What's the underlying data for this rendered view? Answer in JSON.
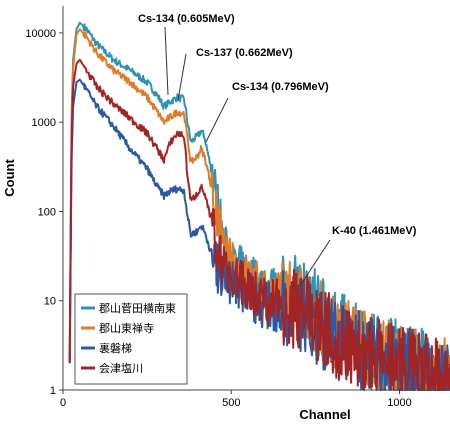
{
  "chart_data": {
    "type": "line",
    "xlabel": "Channel",
    "ylabel": "Count",
    "xlim": [
      0,
      1150
    ],
    "ylim": [
      1,
      20000
    ],
    "yscale": "log",
    "x_ticks": [
      0,
      500,
      1000
    ],
    "y_ticks": [
      1,
      10,
      100,
      1000,
      10000
    ],
    "x_tick_labels": [
      "0",
      "500",
      "1000"
    ],
    "y_tick_labels": [
      "1",
      "10",
      "100",
      "1000",
      "10000"
    ],
    "grid": false,
    "legend_position": "bottom-left",
    "annotations": [
      {
        "text": "Cs-134 (0.605MeV)",
        "x": 330,
        "y": 1500
      },
      {
        "text": "Cs-137 (0.662MeV)",
        "x": 350,
        "y": 1600
      },
      {
        "text": "Cs-134 (0.796MeV)",
        "x": 420,
        "y": 450
      },
      {
        "text": "K-40 (1.461MeV)",
        "x": 705,
        "y": 14
      }
    ],
    "series": [
      {
        "name": "郡山菅田横南東",
        "color": "#2f93b6",
        "points": [
          [
            20,
            2
          ],
          [
            25,
            900
          ],
          [
            30,
            5000
          ],
          [
            40,
            11000
          ],
          [
            50,
            13000
          ],
          [
            70,
            11000
          ],
          [
            100,
            7500
          ],
          [
            150,
            5000
          ],
          [
            200,
            3800
          ],
          [
            250,
            2800
          ],
          [
            280,
            2000
          ],
          [
            300,
            1500
          ],
          [
            320,
            1700
          ],
          [
            340,
            1900
          ],
          [
            360,
            1800
          ],
          [
            370,
            1000
          ],
          [
            380,
            600
          ],
          [
            400,
            700
          ],
          [
            410,
            800
          ],
          [
            420,
            700
          ],
          [
            440,
            300
          ],
          [
            460,
            120
          ],
          [
            480,
            40
          ],
          [
            500,
            25
          ],
          [
            550,
            20
          ],
          [
            600,
            14
          ],
          [
            650,
            12
          ],
          [
            700,
            12
          ],
          [
            750,
            8
          ],
          [
            800,
            5
          ],
          [
            900,
            3
          ],
          [
            1000,
            2.2
          ],
          [
            1100,
            1.6
          ],
          [
            1150,
            1.4
          ]
        ]
      },
      {
        "name": "郡山東禅寺",
        "color": "#e07b2a",
        "points": [
          [
            20,
            2
          ],
          [
            25,
            700
          ],
          [
            30,
            4000
          ],
          [
            40,
            9500
          ],
          [
            50,
            11000
          ],
          [
            70,
            9000
          ],
          [
            100,
            6000
          ],
          [
            150,
            3800
          ],
          [
            200,
            2800
          ],
          [
            250,
            1900
          ],
          [
            280,
            1300
          ],
          [
            300,
            1000
          ],
          [
            320,
            1150
          ],
          [
            340,
            1300
          ],
          [
            360,
            1250
          ],
          [
            370,
            650
          ],
          [
            380,
            350
          ],
          [
            400,
            420
          ],
          [
            410,
            500
          ],
          [
            420,
            420
          ],
          [
            440,
            200
          ],
          [
            460,
            80
          ],
          [
            480,
            35
          ],
          [
            500,
            25
          ],
          [
            550,
            18
          ],
          [
            600,
            13
          ],
          [
            650,
            11
          ],
          [
            700,
            10
          ],
          [
            750,
            7
          ],
          [
            800,
            4.5
          ],
          [
            900,
            3
          ],
          [
            1000,
            2
          ],
          [
            1100,
            1.5
          ],
          [
            1150,
            1.3
          ]
        ]
      },
      {
        "name": "裏磐梯",
        "color": "#2a5aa6",
        "points": [
          [
            20,
            2
          ],
          [
            25,
            300
          ],
          [
            30,
            1500
          ],
          [
            40,
            2800
          ],
          [
            50,
            3000
          ],
          [
            70,
            2300
          ],
          [
            100,
            1500
          ],
          [
            150,
            900
          ],
          [
            200,
            500
          ],
          [
            250,
            300
          ],
          [
            280,
            190
          ],
          [
            300,
            150
          ],
          [
            320,
            170
          ],
          [
            340,
            180
          ],
          [
            360,
            170
          ],
          [
            370,
            90
          ],
          [
            380,
            55
          ],
          [
            400,
            60
          ],
          [
            410,
            70
          ],
          [
            420,
            60
          ],
          [
            440,
            35
          ],
          [
            460,
            22
          ],
          [
            480,
            18
          ],
          [
            500,
            16
          ],
          [
            550,
            12
          ],
          [
            600,
            9
          ],
          [
            650,
            8
          ],
          [
            700,
            7
          ],
          [
            750,
            5
          ],
          [
            800,
            4
          ],
          [
            900,
            2.5
          ],
          [
            1000,
            1.8
          ],
          [
            1100,
            1.3
          ],
          [
            1150,
            1.2
          ]
        ]
      },
      {
        "name": "会津塩川",
        "color": "#a32424",
        "points": [
          [
            20,
            2
          ],
          [
            25,
            500
          ],
          [
            30,
            2500
          ],
          [
            40,
            4500
          ],
          [
            50,
            5000
          ],
          [
            70,
            3800
          ],
          [
            100,
            2500
          ],
          [
            150,
            1600
          ],
          [
            200,
            1100
          ],
          [
            250,
            750
          ],
          [
            280,
            500
          ],
          [
            300,
            380
          ],
          [
            320,
            600
          ],
          [
            340,
            750
          ],
          [
            360,
            700
          ],
          [
            370,
            250
          ],
          [
            380,
            130
          ],
          [
            400,
            160
          ],
          [
            410,
            190
          ],
          [
            420,
            160
          ],
          [
            440,
            80
          ],
          [
            460,
            35
          ],
          [
            480,
            25
          ],
          [
            500,
            18
          ],
          [
            550,
            14
          ],
          [
            600,
            10
          ],
          [
            650,
            9
          ],
          [
            700,
            8
          ],
          [
            750,
            6
          ],
          [
            800,
            4
          ],
          [
            900,
            2.5
          ],
          [
            1000,
            1.9
          ],
          [
            1100,
            1.4
          ],
          [
            1150,
            1.2
          ]
        ]
      }
    ]
  }
}
